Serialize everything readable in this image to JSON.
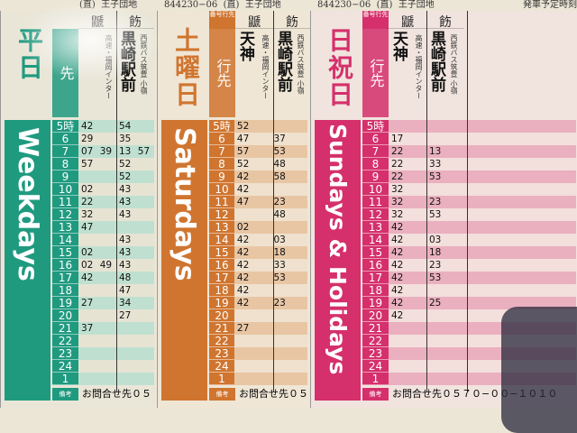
{
  "header": {
    "code": "844230−06",
    "direct": "(直)",
    "stop": "王子団地",
    "title": "発車予定時刻"
  },
  "route_headers": {
    "col1": "鼶",
    "col2": "飭",
    "route_label": "番号行先",
    "route_col": "行先"
  },
  "destinations": {
    "col1": "天神",
    "col1_sub": "高速・福岡インター",
    "col2": "黒崎駅前",
    "col2_sub": "西鉄バス筑豊 小嶺"
  },
  "hours": [
    "5時",
    "6",
    "7",
    "8",
    "9",
    "10",
    "11",
    "12",
    "13",
    "14",
    "15",
    "16",
    "17",
    "18",
    "19",
    "20",
    "21",
    "22",
    "23",
    "24",
    "1"
  ],
  "note_label": "備考",
  "weekdays": {
    "label_jp": "平日",
    "label_en": "Weekdays",
    "route_col": "先",
    "color": "#1f9a7f",
    "stripe1": "#bfe0d0",
    "stripe2": "#e7e3d3",
    "note": "お問合せ先０５",
    "col1": [
      "42",
      "29",
      "07 39",
      "57",
      "",
      "02",
      "22",
      "32",
      "47",
      "",
      "02",
      "02 49",
      "42",
      "",
      "27",
      "",
      "37",
      "",
      "",
      "",
      ""
    ],
    "col2": [
      "54",
      "35",
      "13 57",
      "52",
      "52",
      "43",
      "43",
      "43",
      "",
      "43",
      "43",
      "43",
      "48",
      "47",
      "34",
      "27",
      "",
      "",
      "",
      "",
      ""
    ]
  },
  "saturdays": {
    "label_jp": "土曜日",
    "label_en": "Saturdays",
    "color": "#d0752f",
    "stripe1": "#e8c6a4",
    "stripe2": "#efe1cd",
    "note": "お問合せ先０５",
    "col1": [
      "52",
      "47",
      "57",
      "52",
      "42",
      "42",
      "47",
      "",
      "02",
      "42",
      "42",
      "42",
      "42",
      "42",
      "42",
      "",
      "27",
      "",
      "",
      "",
      ""
    ],
    "col2": [
      "",
      "37",
      "53",
      "48",
      "58",
      "",
      "23",
      "48",
      "",
      "03",
      "18",
      "33",
      "53",
      "",
      "23",
      "",
      "",
      "",
      "",
      "",
      ""
    ]
  },
  "holidays": {
    "label_jp": "日祝日",
    "label_en": "Sundays & Holidays",
    "color": "#d5306b",
    "stripe1": "#eab0bf",
    "stripe2": "#f3dfdc",
    "note": "お問合せ先０５７０−００−１０１０",
    "col1": [
      "",
      "17",
      "22",
      "22",
      "22",
      "32",
      "32",
      "32",
      "42",
      "42",
      "42",
      "42",
      "42",
      "42",
      "42",
      "42",
      "",
      "",
      "",
      "",
      ""
    ],
    "col2": [
      "",
      "",
      "13",
      "33",
      "53",
      "",
      "23",
      "53",
      "",
      "03",
      "18",
      "23",
      "53",
      "",
      "25",
      "",
      "",
      "",
      "",
      "",
      ""
    ]
  }
}
